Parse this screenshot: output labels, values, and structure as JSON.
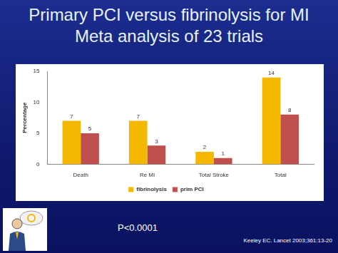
{
  "chart_data": {
    "type": "bar",
    "title": [
      "Primary PCI versus fibrinolysis for MI",
      "Meta analysis of 23 trials"
    ],
    "categories": [
      "Death",
      "Re MI",
      "Total Stroke",
      "Total"
    ],
    "series": [
      {
        "name": "fibrinolysis",
        "color": "#f5b800",
        "values": [
          7,
          7,
          2,
          14
        ]
      },
      {
        "name": "prim PCI",
        "color": "#c0504d",
        "values": [
          5,
          3,
          1,
          8
        ]
      }
    ],
    "y_label": "Percentage",
    "ylim": [
      0,
      15
    ],
    "yticks": [
      0,
      5,
      10,
      15
    ],
    "grid": false,
    "legend": "bottom",
    "data_labels": true,
    "annotations": [
      "P<0.0001",
      "Keeley EC. Lancet 2003;361:13-20"
    ]
  }
}
